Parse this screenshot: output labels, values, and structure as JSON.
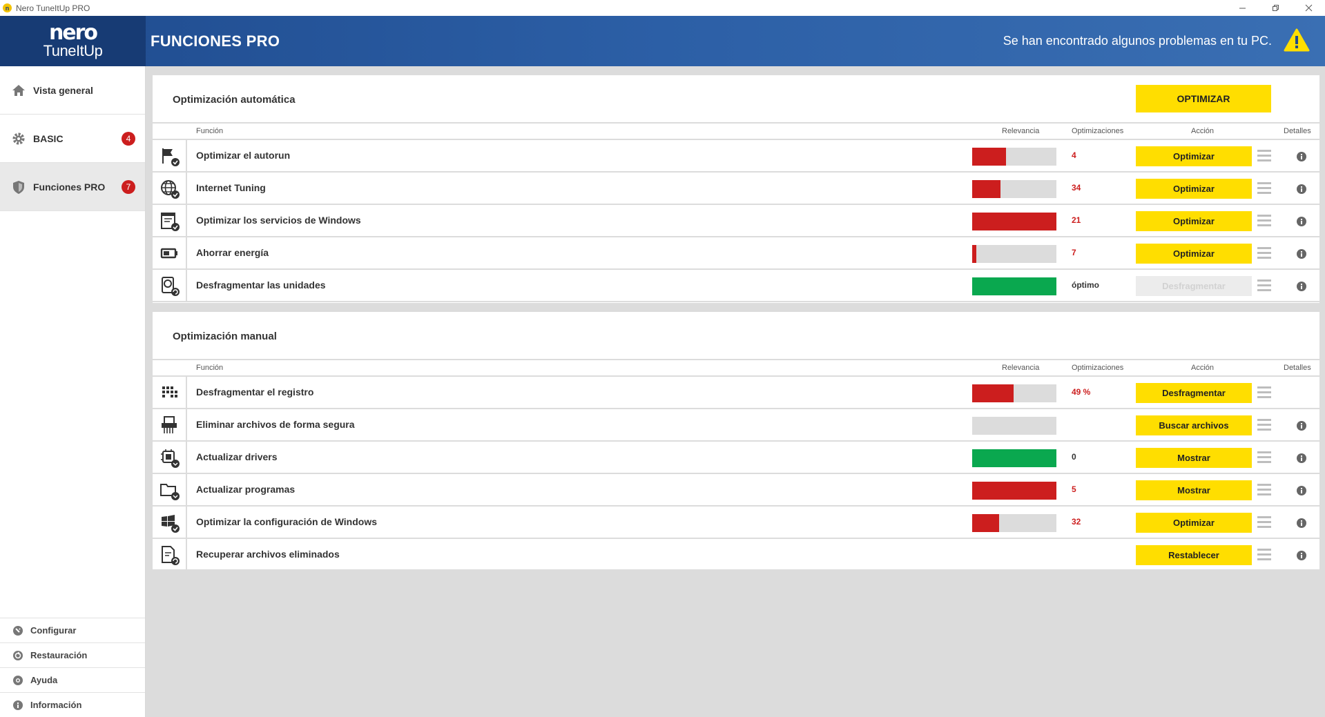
{
  "window": {
    "title": "Nero TuneItUp PRO",
    "app_icon": "n"
  },
  "header": {
    "logo_top": "nero",
    "logo_bottom": "TuneItUp",
    "page_title": "FUNCIONES PRO",
    "alert_text": "Se han encontrado algunos problemas en tu PC.",
    "accent_color": "#ffde00",
    "brand_color": "#1f4b8e"
  },
  "sidebar": {
    "items": [
      {
        "label": "Vista general",
        "icon": "home-icon"
      },
      {
        "label": "BASIC",
        "icon": "gear-icon",
        "badge": "4"
      },
      {
        "label": "Funciones PRO",
        "icon": "shield-icon",
        "badge": "7"
      }
    ],
    "bottom": [
      {
        "label": "Configurar",
        "icon": "settings-icon"
      },
      {
        "label": "Restauración",
        "icon": "restore-icon"
      },
      {
        "label": "Ayuda",
        "icon": "help-icon"
      },
      {
        "label": "Información",
        "icon": "info-icon"
      }
    ]
  },
  "columns": {
    "funcion": "Función",
    "relevancia": "Relevancia",
    "optimizaciones": "Optimizaciones",
    "accion": "Acción",
    "detalles": "Detalles"
  },
  "auto": {
    "title": "Optimización automática",
    "optimize_all": "OPTIMIZAR",
    "rows": [
      {
        "name": "Optimizar el autorun",
        "icon": "autorun-flag-icon",
        "relevance": 0.4,
        "bar_color": "#cc1e1e",
        "value": "4",
        "action": "Optimizar"
      },
      {
        "name": "Internet Tuning",
        "icon": "globe-icon",
        "relevance": 0.34,
        "bar_color": "#cc1e1e",
        "value": "34",
        "action": "Optimizar"
      },
      {
        "name": "Optimizar los servicios de Windows",
        "icon": "services-window-icon",
        "relevance": 1.0,
        "bar_color": "#cc1e1e",
        "value": "21",
        "action": "Optimizar"
      },
      {
        "name": "Ahorrar energía",
        "icon": "battery-icon",
        "relevance": 0.05,
        "bar_color": "#cc1e1e",
        "value": "7",
        "action": "Optimizar"
      },
      {
        "name": "Desfragmentar las unidades",
        "icon": "disk-defrag-icon",
        "relevance": 1.0,
        "bar_color": "#0aa84f",
        "value": "óptimo",
        "action": "Desfragmentar",
        "disabled": true
      }
    ]
  },
  "manual": {
    "title": "Optimización manual",
    "rows": [
      {
        "name": "Desfragmentar el registro",
        "icon": "registry-blocks-icon",
        "relevance": 0.49,
        "bar_color": "#cc1e1e",
        "value": "49 %",
        "action": "Desfragmentar",
        "no_info": true
      },
      {
        "name": "Eliminar archivos de forma segura",
        "icon": "shredder-icon",
        "relevance": 0.0,
        "bar_color": "#dcdcdc",
        "value": "",
        "action": "Buscar archivos"
      },
      {
        "name": "Actualizar drivers",
        "icon": "chip-download-icon",
        "relevance": 1.0,
        "bar_color": "#0aa84f",
        "value": "0",
        "action": "Mostrar",
        "dark": true
      },
      {
        "name": "Actualizar programas",
        "icon": "folder-download-icon",
        "relevance": 1.0,
        "bar_color": "#cc1e1e",
        "value": "5",
        "action": "Mostrar"
      },
      {
        "name": "Optimizar la configuración de Windows",
        "icon": "windows-check-icon",
        "relevance": 0.32,
        "bar_color": "#cc1e1e",
        "value": "32",
        "action": "Optimizar"
      },
      {
        "name": "Recuperar archivos eliminados",
        "icon": "file-restore-icon",
        "relevance": null,
        "bar_color": "",
        "value": "",
        "action": "Restablecer"
      }
    ]
  }
}
